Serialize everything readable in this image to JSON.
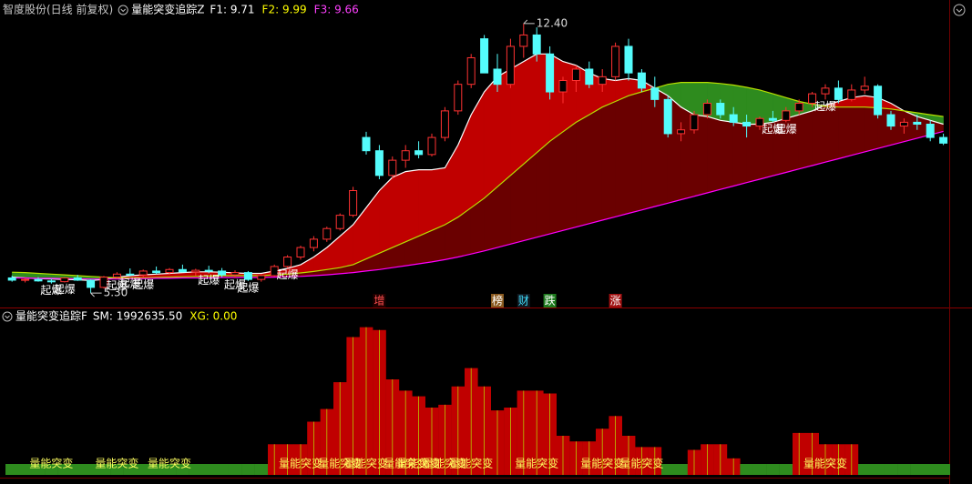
{
  "top_header": {
    "title": "智度股份(日线 前复权)",
    "indicator": "量能突变追踪Z",
    "items": [
      {
        "label": "F1: 9.71",
        "color": "#ffffff"
      },
      {
        "label": "F2: 9.99",
        "color": "#ffff00"
      },
      {
        "label": "F3: 9.66",
        "color": "#ff40ff"
      }
    ]
  },
  "bottom_header": {
    "indicator": "量能突变追踪F",
    "items": [
      {
        "label": "SM: 1992635.50",
        "color": "#ffffff"
      },
      {
        "label": "XG: 0.00",
        "color": "#ffff00"
      }
    ]
  },
  "chart_data": [
    {
      "type": "candlestick",
      "ylim": [
        4.92,
        12.59
      ],
      "up_color": "#ff3232",
      "down_color": "#54fcfc",
      "fill_up": "#c00000",
      "fill_down": "#2e8b1e",
      "fill_base": "#6a0000",
      "max_label": "12.40",
      "min_label": "5.30",
      "open": [
        5.7,
        5.64,
        5.66,
        5.62,
        5.6,
        5.7,
        5.64,
        5.45,
        5.72,
        5.8,
        5.78,
        5.88,
        5.84,
        5.92,
        5.86,
        5.9,
        5.88,
        5.78,
        5.84,
        5.66,
        5.76,
        6.0,
        6.25,
        6.5,
        6.72,
        7.0,
        7.35,
        9.4,
        9.05,
        8.4,
        8.8,
        9.05,
        8.95,
        9.4,
        10.1,
        10.8,
        12.0,
        11.2,
        10.8,
        11.8,
        12.1,
        11.6,
        10.6,
        10.9,
        11.2,
        10.8,
        11.0,
        11.8,
        11.1,
        10.7,
        10.4,
        9.5,
        9.6,
        10.0,
        10.3,
        10.0,
        9.8,
        9.7,
        9.9,
        9.85,
        10.1,
        10.3,
        10.55,
        10.7,
        10.4,
        10.65,
        10.75,
        10.0,
        9.7,
        9.8,
        9.75,
        9.4
      ],
      "high": [
        5.76,
        5.7,
        5.72,
        5.68,
        5.72,
        5.78,
        5.66,
        5.75,
        5.85,
        5.95,
        5.92,
        6.0,
        5.96,
        6.05,
        5.94,
        6.02,
        5.96,
        5.9,
        5.88,
        5.8,
        6.05,
        6.3,
        6.55,
        6.8,
        7.05,
        7.4,
        8.1,
        9.55,
        9.2,
        8.9,
        9.2,
        9.3,
        9.5,
        10.2,
        10.9,
        11.6,
        12.1,
        11.6,
        12.0,
        12.4,
        12.3,
        11.8,
        11.0,
        11.3,
        11.4,
        11.2,
        11.9,
        12.0,
        11.2,
        11.0,
        10.5,
        9.8,
        10.1,
        10.4,
        10.4,
        10.2,
        10.0,
        9.95,
        10.1,
        10.2,
        10.4,
        10.6,
        10.8,
        10.9,
        10.8,
        11.0,
        10.8,
        10.1,
        9.9,
        10.0,
        9.85,
        9.5
      ],
      "low": [
        5.6,
        5.58,
        5.6,
        5.55,
        5.58,
        5.62,
        5.3,
        5.42,
        5.68,
        5.74,
        5.7,
        5.8,
        5.78,
        5.85,
        5.76,
        5.82,
        5.72,
        5.7,
        5.62,
        5.6,
        5.74,
        5.96,
        6.18,
        6.4,
        6.65,
        6.95,
        7.3,
        8.95,
        8.3,
        8.3,
        8.6,
        8.85,
        8.9,
        9.3,
        10.0,
        10.7,
        11.1,
        10.6,
        10.7,
        11.5,
        11.4,
        10.4,
        10.3,
        10.6,
        10.7,
        10.6,
        10.9,
        10.9,
        10.6,
        10.2,
        9.4,
        9.3,
        9.5,
        9.9,
        9.9,
        9.7,
        9.4,
        9.6,
        9.8,
        9.8,
        10.0,
        10.2,
        10.4,
        10.3,
        10.35,
        10.55,
        9.9,
        9.6,
        9.5,
        9.6,
        9.3,
        9.2
      ],
      "close": [
        5.64,
        5.66,
        5.62,
        5.6,
        5.7,
        5.64,
        5.45,
        5.72,
        5.8,
        5.78,
        5.88,
        5.84,
        5.92,
        5.86,
        5.9,
        5.88,
        5.78,
        5.84,
        5.66,
        5.76,
        6.0,
        6.25,
        6.5,
        6.72,
        7.0,
        7.35,
        8.0,
        9.05,
        8.4,
        8.8,
        9.05,
        8.95,
        9.4,
        10.1,
        10.8,
        11.5,
        11.1,
        10.8,
        11.8,
        12.1,
        11.6,
        10.6,
        10.9,
        11.2,
        10.8,
        11.0,
        11.8,
        11.1,
        10.7,
        10.4,
        9.5,
        9.6,
        10.0,
        10.3,
        10.0,
        9.8,
        9.7,
        9.9,
        9.85,
        10.1,
        10.3,
        10.55,
        10.7,
        10.4,
        10.65,
        10.75,
        10.0,
        9.7,
        9.8,
        9.75,
        9.4,
        9.25
      ],
      "series": [
        {
          "color": "#ffffff",
          "values": [
            5.72,
            5.7,
            5.68,
            5.67,
            5.66,
            5.65,
            5.63,
            5.66,
            5.72,
            5.76,
            5.78,
            5.8,
            5.82,
            5.84,
            5.86,
            5.86,
            5.85,
            5.83,
            5.82,
            5.82,
            5.88,
            5.95,
            6.05,
            6.25,
            6.5,
            6.8,
            7.1,
            7.55,
            8.0,
            8.35,
            8.5,
            8.55,
            8.55,
            8.6,
            9.2,
            10.0,
            10.6,
            11.0,
            11.2,
            11.4,
            11.6,
            11.6,
            11.4,
            11.3,
            11.1,
            10.95,
            10.9,
            10.95,
            10.9,
            10.7,
            10.5,
            10.2,
            10.0,
            9.95,
            9.85,
            9.8,
            9.75,
            9.75,
            9.8,
            9.9,
            10.0,
            10.1,
            10.25,
            10.35,
            10.45,
            10.5,
            10.45,
            10.3,
            10.1,
            9.95,
            9.85,
            9.75
          ]
        },
        {
          "color": "#b8e000",
          "values": [
            5.85,
            5.84,
            5.82,
            5.8,
            5.78,
            5.76,
            5.74,
            5.72,
            5.7,
            5.7,
            5.7,
            5.71,
            5.72,
            5.73,
            5.74,
            5.75,
            5.76,
            5.76,
            5.76,
            5.76,
            5.78,
            5.8,
            5.83,
            5.87,
            5.92,
            5.97,
            6.05,
            6.2,
            6.35,
            6.5,
            6.65,
            6.8,
            6.95,
            7.1,
            7.3,
            7.55,
            7.8,
            8.1,
            8.4,
            8.7,
            9.0,
            9.3,
            9.55,
            9.8,
            10.0,
            10.2,
            10.35,
            10.5,
            10.6,
            10.7,
            10.8,
            10.85,
            10.85,
            10.85,
            10.82,
            10.78,
            10.72,
            10.65,
            10.55,
            10.45,
            10.35,
            10.28,
            10.22,
            10.2,
            10.2,
            10.2,
            10.18,
            10.15,
            10.1,
            10.05,
            10.0,
            9.95
          ]
        },
        {
          "color": "#ff00ff",
          "values": [
            5.7,
            5.7,
            5.69,
            5.69,
            5.68,
            5.68,
            5.67,
            5.67,
            5.67,
            5.68,
            5.68,
            5.69,
            5.69,
            5.7,
            5.7,
            5.7,
            5.71,
            5.71,
            5.71,
            5.71,
            5.72,
            5.73,
            5.74,
            5.76,
            5.78,
            5.81,
            5.84,
            5.88,
            5.92,
            5.97,
            6.02,
            6.07,
            6.12,
            6.18,
            6.25,
            6.33,
            6.41,
            6.5,
            6.59,
            6.68,
            6.77,
            6.86,
            6.95,
            7.04,
            7.13,
            7.22,
            7.31,
            7.4,
            7.49,
            7.58,
            7.67,
            7.76,
            7.85,
            7.94,
            8.03,
            8.12,
            8.21,
            8.3,
            8.39,
            8.48,
            8.57,
            8.66,
            8.75,
            8.84,
            8.93,
            9.02,
            9.11,
            9.2,
            9.29,
            9.38,
            9.47,
            9.56
          ]
        }
      ],
      "signal_labels": [
        null,
        null,
        null,
        "起爆",
        "起爆",
        null,
        null,
        null,
        "起爆",
        "起爆",
        "起爆",
        null,
        null,
        null,
        null,
        "起爆",
        null,
        "起爆",
        "起爆",
        null,
        null,
        "起爆",
        null,
        null,
        null,
        null,
        null,
        null,
        null,
        null,
        null,
        null,
        null,
        null,
        null,
        null,
        null,
        null,
        null,
        null,
        null,
        null,
        null,
        null,
        null,
        null,
        null,
        null,
        null,
        null,
        null,
        null,
        null,
        null,
        null,
        null,
        null,
        null,
        "起爆",
        "起爆",
        null,
        null,
        "起爆",
        null,
        null,
        null,
        null,
        null,
        null,
        null,
        null,
        null
      ],
      "events": [
        null,
        null,
        null,
        null,
        null,
        null,
        null,
        null,
        null,
        null,
        null,
        null,
        null,
        null,
        null,
        null,
        null,
        null,
        null,
        null,
        null,
        null,
        null,
        null,
        null,
        null,
        null,
        null,
        {
          "label": "增",
          "color": "#ff5050",
          "background": "#200000"
        },
        null,
        null,
        null,
        null,
        null,
        null,
        null,
        null,
        {
          "label": "榜",
          "color": "#ffffff",
          "background": "#8a5a20"
        },
        null,
        {
          "label": "财",
          "color": "#40e0ff",
          "background": "#101820"
        },
        null,
        {
          "label": "跌",
          "color": "#ffffff",
          "background": "#1d7a1d"
        },
        null,
        null,
        null,
        null,
        {
          "label": "涨",
          "color": "#ffffff",
          "background": "#a01010"
        },
        null,
        null,
        null,
        null,
        null,
        null,
        null,
        null,
        null,
        null,
        null,
        null,
        null,
        null,
        null,
        null,
        null,
        null,
        null,
        null,
        null,
        null,
        null,
        null,
        null
      ]
    },
    {
      "type": "area",
      "ylim": [
        0,
        100
      ],
      "color": "#c00000",
      "zero_color": "#2e8b1e",
      "stripe_color": "#b8c800",
      "label_color": "#ffff60",
      "values": [
        0,
        0,
        0,
        0,
        0,
        0,
        0,
        0,
        0,
        0,
        0,
        0,
        0,
        0,
        0,
        0,
        0,
        0,
        0,
        0,
        14,
        14,
        14,
        30,
        39,
        58,
        90,
        97,
        95,
        60,
        52,
        48,
        40,
        42,
        55,
        68,
        55,
        38,
        40,
        52,
        52,
        50,
        20,
        16,
        16,
        25,
        34,
        20,
        12,
        12,
        0,
        0,
        10,
        14,
        14,
        4,
        0,
        0,
        0,
        0,
        22,
        22,
        14,
        14,
        14,
        0,
        0,
        0,
        0,
        0,
        0,
        0
      ],
      "burst_labels": [
        null,
        null,
        null,
        "量能突变",
        null,
        null,
        null,
        null,
        "量能突变",
        null,
        null,
        null,
        "量能突变",
        null,
        null,
        null,
        null,
        null,
        null,
        null,
        null,
        null,
        "量能突变",
        null,
        null,
        "量能突变",
        null,
        "量能突变",
        null,
        null,
        "量能突变",
        "量能突变",
        null,
        "量能突变",
        null,
        "量能突变",
        null,
        null,
        null,
        null,
        "量能突变",
        null,
        null,
        null,
        null,
        "量能突变",
        null,
        null,
        "量能突变",
        null,
        null,
        null,
        null,
        null,
        null,
        null,
        null,
        null,
        null,
        null,
        null,
        null,
        "量能突变",
        null,
        null,
        null,
        null,
        null,
        null,
        null,
        null,
        null
      ]
    }
  ]
}
